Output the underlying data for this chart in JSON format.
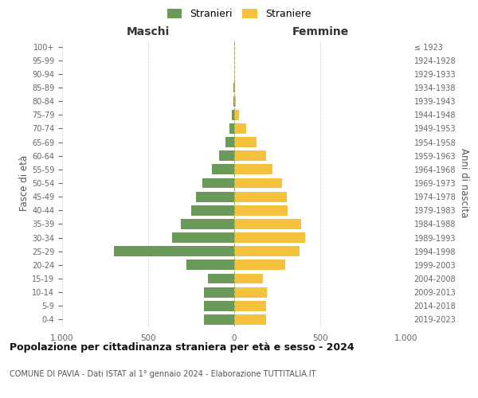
{
  "age_groups": [
    "0-4",
    "5-9",
    "10-14",
    "15-19",
    "20-24",
    "25-29",
    "30-34",
    "35-39",
    "40-44",
    "45-49",
    "50-54",
    "55-59",
    "60-64",
    "65-69",
    "70-74",
    "75-79",
    "80-84",
    "85-89",
    "90-94",
    "95-99",
    "100+"
  ],
  "birth_years": [
    "2019-2023",
    "2014-2018",
    "2009-2013",
    "2004-2008",
    "1999-2003",
    "1994-1998",
    "1989-1993",
    "1984-1988",
    "1979-1983",
    "1974-1978",
    "1969-1973",
    "1964-1968",
    "1959-1963",
    "1954-1958",
    "1949-1953",
    "1944-1948",
    "1939-1943",
    "1934-1938",
    "1929-1933",
    "1924-1928",
    "≤ 1923"
  ],
  "maschi": [
    175,
    175,
    175,
    155,
    280,
    700,
    360,
    310,
    250,
    220,
    185,
    130,
    90,
    50,
    30,
    15,
    5,
    3,
    2,
    1,
    1
  ],
  "femmine": [
    185,
    185,
    190,
    165,
    295,
    380,
    410,
    390,
    310,
    305,
    280,
    220,
    185,
    130,
    70,
    30,
    8,
    4,
    2,
    1,
    1
  ],
  "color_maschi": "#6a9a5a",
  "color_femmine": "#f5c23e",
  "title": "Popolazione per cittadinanza straniera per età e sesso - 2024",
  "subtitle": "COMUNE DI PAVIA - Dati ISTAT al 1° gennaio 2024 - Elaborazione TUTTITALIA.IT",
  "legend_maschi": "Stranieri",
  "legend_femmine": "Straniere",
  "label_left": "Maschi",
  "label_right": "Femmine",
  "ylabel_left": "Fasce di età",
  "ylabel_right": "Anni di nascita",
  "xlim": 1000,
  "background_color": "#ffffff",
  "grid_color": "#cccccc"
}
